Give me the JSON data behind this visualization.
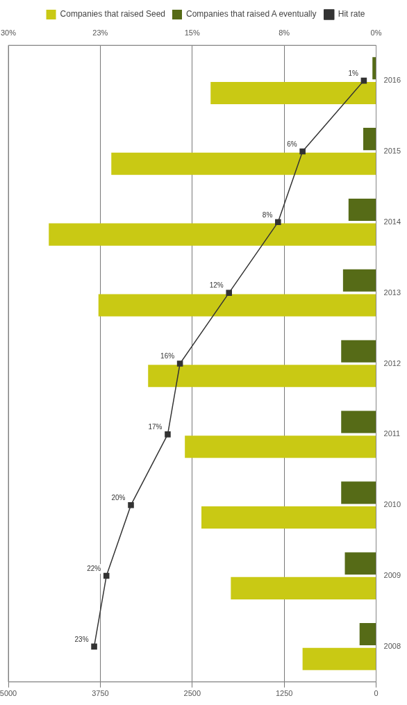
{
  "chart_data": {
    "type": "bar",
    "orientation": "horizontal",
    "categories": [
      "2016",
      "2015",
      "2014",
      "2013",
      "2012",
      "2011",
      "2010",
      "2009",
      "2008"
    ],
    "series": [
      {
        "name": "Companies that raised A eventually",
        "color": "#566b17",
        "values": [
          50,
          175,
          375,
          450,
          475,
          475,
          475,
          425,
          225
        ]
      },
      {
        "name": "Companies that raised Seed",
        "color": "#c9c914",
        "values": [
          2250,
          3600,
          4450,
          3775,
          3100,
          2600,
          2375,
          1975,
          1000
        ]
      },
      {
        "name": "Hit rate",
        "type": "line",
        "axis": "x2",
        "color": "#333333",
        "values": [
          1,
          6,
          8,
          12,
          16,
          17,
          20,
          22,
          23
        ],
        "value_labels": [
          "1%",
          "6%",
          "8%",
          "12%",
          "16%",
          "17%",
          "20%",
          "22%",
          "23%"
        ]
      }
    ],
    "xlim": [
      5000,
      0
    ],
    "xticks": [
      0,
      1250,
      2500,
      3750,
      5000
    ],
    "x2lim": [
      30,
      0
    ],
    "x2ticks": [
      {
        "value": 0,
        "label": "0%"
      },
      {
        "value": 7.5,
        "label": "8%"
      },
      {
        "value": 15,
        "label": "15%"
      },
      {
        "value": 22.5,
        "label": "23%"
      },
      {
        "value": 30,
        "label": "30%"
      }
    ],
    "grid": "x",
    "legend": "top",
    "marker": "square"
  }
}
